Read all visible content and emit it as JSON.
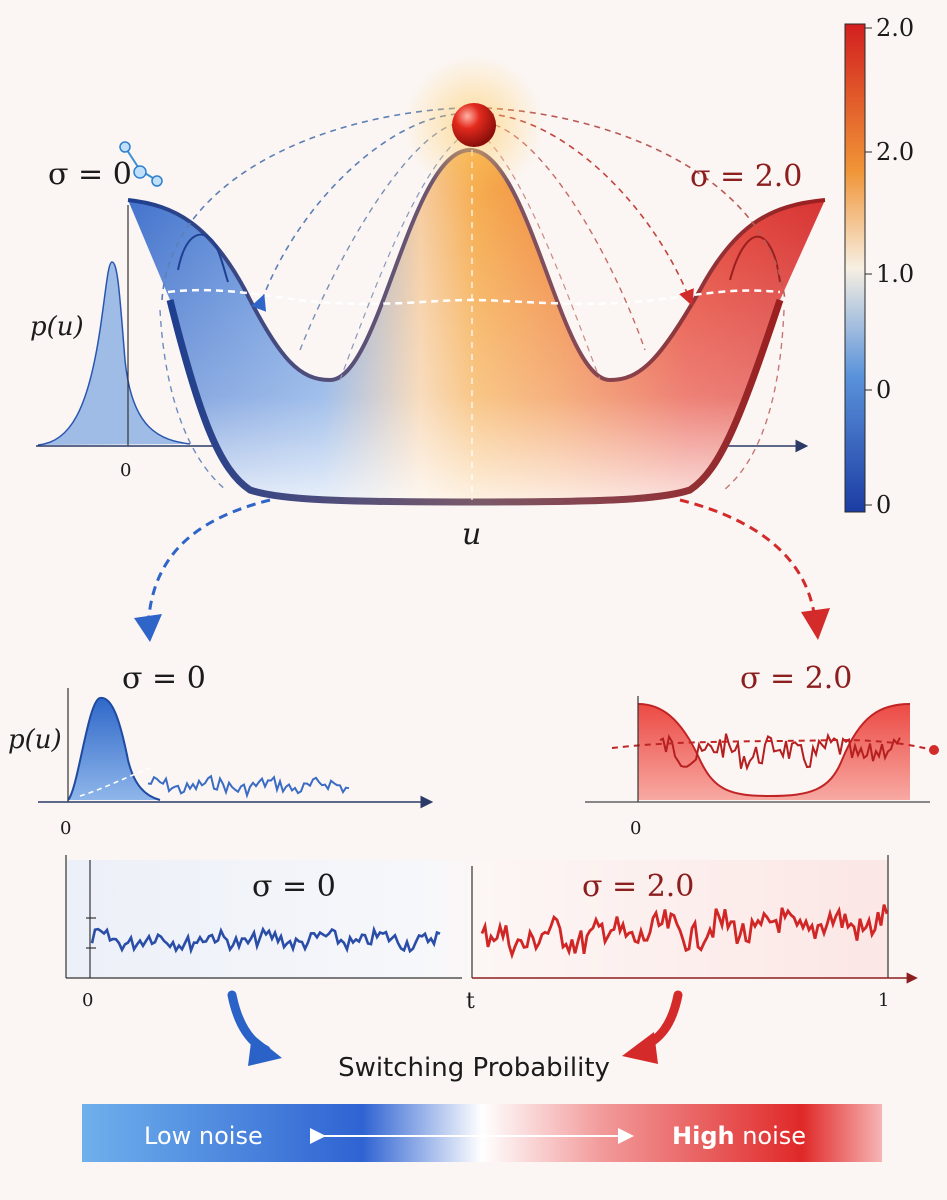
{
  "title_sigma_left": "σ = 0",
  "title_sigma_right": "σ = 2.0",
  "top_ylabel": "p(u)",
  "top_tick_zero": "0",
  "top_xlabel": "u",
  "colorbar": {
    "ticks": [
      "2.0",
      "2.0",
      "1.0",
      "0",
      "0"
    ],
    "colors": [
      "#d21f1f",
      "#f29a35",
      "#f7f0e6",
      "#4f8ad8",
      "#1d3fa5"
    ]
  },
  "mid_left": {
    "title": "σ = 0",
    "ylabel": "p(u)",
    "tick_zero": "0"
  },
  "mid_right": {
    "title": "σ = 2.0",
    "tick_zero": "0"
  },
  "bottom": {
    "title_left": "σ = 0",
    "title_right": "σ = 2.0",
    "tick_zero": "0",
    "tick_t": "t",
    "tick_one": "1"
  },
  "switching_label": "Switching Probability",
  "noise_bar": {
    "low_label": "Low noise",
    "high_bold": "High",
    "high_label": " noise"
  },
  "colors": {
    "blue": "#2257b8",
    "red": "#d42828",
    "orange": "#f08a25"
  }
}
